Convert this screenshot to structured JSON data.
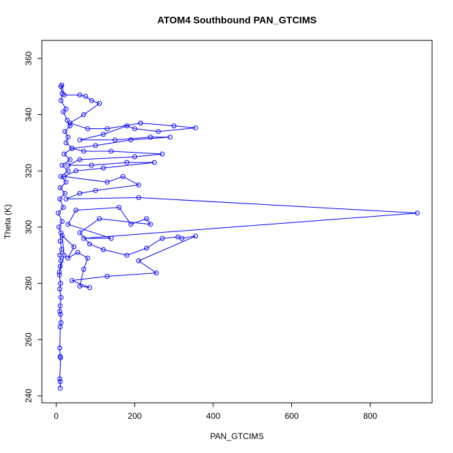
{
  "chart_data": {
    "type": "line",
    "title": "ATOM4 Southbound PAN_GTCIMS",
    "x_label": "PAN_GTCIMS",
    "y_label": "Theta (K)",
    "color": "#0000ff",
    "markers": true,
    "grid": false,
    "xlim": [
      -36.8,
      957.8
    ],
    "ylim": [
      237.5,
      366.4
    ],
    "xticks": [
      0,
      200,
      400,
      600,
      800
    ],
    "yticks": [
      240,
      260,
      280,
      300,
      320,
      340,
      360
    ],
    "x": [
      10,
      10,
      9,
      11,
      10,
      9,
      10,
      12,
      11,
      9,
      10,
      12,
      9,
      11,
      8,
      10,
      12,
      9,
      14,
      10,
      12,
      7,
      15,
      5,
      18,
      9,
      22,
      10,
      25,
      12,
      30,
      15,
      35,
      20,
      40,
      25,
      30,
      22,
      35,
      28,
      18,
      25,
      12,
      15,
      12,
      14,
      20,
      60,
      75,
      90,
      110,
      70,
      35,
      80,
      130,
      215,
      300,
      355,
      260,
      200,
      180,
      120,
      60,
      150,
      240,
      290,
      190,
      100,
      40,
      70,
      140,
      270,
      200,
      60,
      30,
      90,
      180,
      250,
      120,
      50,
      20,
      130,
      170,
      210,
      100,
      60,
      25,
      210,
      920,
      70,
      140,
      30,
      50,
      160,
      190,
      230,
      240,
      110,
      60,
      85,
      120,
      180,
      230,
      270,
      310,
      320,
      355,
      210,
      255,
      130,
      40,
      85,
      60,
      70,
      80,
      55,
      30,
      45,
      15,
      20,
      8
    ],
    "y": [
      242.7,
      245,
      246,
      253.5,
      254,
      257,
      264.5,
      266,
      269,
      270,
      272,
      275,
      278,
      280,
      283,
      286,
      288,
      290,
      292,
      295,
      298,
      300,
      302,
      305,
      307,
      310,
      312,
      314,
      316,
      318,
      320,
      322,
      324,
      326,
      328,
      330,
      332,
      334,
      336,
      338,
      341,
      342,
      345,
      347.5,
      350,
      350.5,
      347,
      347,
      346.5,
      345,
      344,
      340,
      337,
      335,
      335,
      337,
      336,
      335.3,
      334,
      335,
      336,
      333,
      331,
      331,
      332,
      332,
      331,
      329,
      328,
      327,
      327,
      326,
      325,
      324,
      322,
      322,
      323,
      323,
      321,
      320,
      318,
      316,
      318,
      315,
      313,
      312,
      310,
      310.5,
      305,
      296,
      296,
      301,
      306,
      307,
      301,
      303,
      301,
      303,
      298,
      294,
      292,
      290,
      292.5,
      296,
      296.5,
      296,
      296.8,
      288,
      283.7,
      282.5,
      281,
      278.5,
      279,
      285,
      289,
      291,
      289,
      293,
      297,
      290,
      284
    ]
  }
}
